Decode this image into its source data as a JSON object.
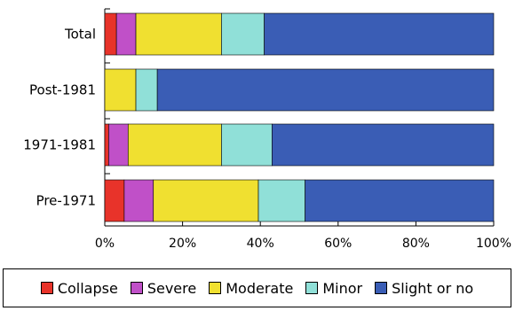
{
  "chart_data": {
    "type": "bar",
    "orientation": "horizontal",
    "stacked": true,
    "categories": [
      "Total",
      "Post-1981",
      "1971-1981",
      "Pre-1971"
    ],
    "series": [
      {
        "name": "Collapse",
        "color": "#e8332a",
        "values": [
          3,
          0,
          1,
          5
        ]
      },
      {
        "name": "Severe",
        "color": "#c050c8",
        "values": [
          5,
          0,
          5,
          7.5
        ]
      },
      {
        "name": "Moderate",
        "color": "#f0e030",
        "values": [
          22,
          8,
          24,
          27
        ]
      },
      {
        "name": "Minor",
        "color": "#90e0d8",
        "values": [
          11,
          5.5,
          13,
          12
        ]
      },
      {
        "name": "Slight or no",
        "color": "#3a5db5",
        "values": [
          59,
          86.5,
          57,
          48.5
        ]
      }
    ],
    "xlim": [
      0,
      100
    ],
    "xticks": [
      "0%",
      "20%",
      "40%",
      "60%",
      "80%",
      "100%"
    ],
    "grid": false,
    "legend_position": "bottom"
  }
}
